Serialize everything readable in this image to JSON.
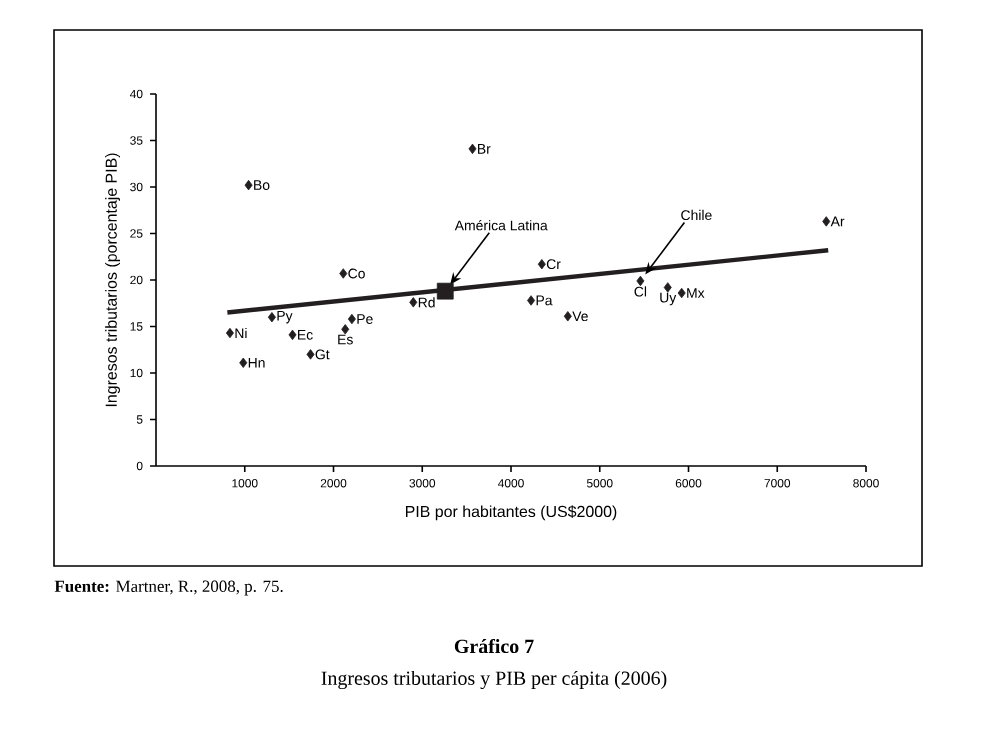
{
  "chart_data": {
    "type": "scatter",
    "title": "Gráfico 7",
    "subtitle": "Ingresos tributarios y PIB per cápita (2006)",
    "xlabel": "PIB por habitantes (US$2000)",
    "ylabel": "Ingresos tributarios (porcentaje PIB)",
    "xlim": [
      0,
      8000
    ],
    "xticks": [
      1000,
      2000,
      3000,
      4000,
      5000,
      6000,
      7000,
      8000
    ],
    "ylim": [
      0,
      40
    ],
    "yticks": [
      0,
      5,
      10,
      15,
      20,
      25,
      30,
      35,
      40
    ],
    "series": [
      {
        "marker": "diamond",
        "color": "#231f20",
        "x": [
          833,
          1043,
          983,
          1306,
          1538,
          1741,
          2110,
          2132,
          2207,
          2899,
          3566,
          4347,
          4226,
          4640,
          5458,
          5766,
          5923,
          7552
        ],
        "values": [
          14.3,
          30.2,
          11.1,
          16.0,
          14.1,
          12.0,
          20.7,
          14.7,
          15.8,
          17.6,
          34.1,
          21.7,
          17.8,
          16.1,
          19.9,
          19.2,
          18.6,
          26.3
        ],
        "value_labels": [
          "Ni",
          "Bo",
          "Hn",
          "Py",
          "Ec",
          "Gt",
          "Co",
          "Es",
          "Pe",
          "Rd",
          "Br",
          "Cr",
          "Pa",
          "Ve",
          "Cl",
          "Uy",
          "Mx",
          "Ar"
        ]
      },
      {
        "marker": "square",
        "color": "#231f20",
        "x": [
          3259
        ],
        "values": [
          18.8
        ]
      },
      {
        "type": "line",
        "marker": "none",
        "color": "#231f20",
        "x": [
          804,
          7574
        ],
        "values": [
          16.5,
          23.2
        ]
      }
    ],
    "annotations": [
      {
        "text": "América Latina",
        "x": 3259,
        "y": 18.8
      },
      {
        "text": "Chile",
        "x": 5458,
        "y": 19.9
      },
      "**Fuente:** Martner, R., 2008, p. 75."
    ]
  }
}
